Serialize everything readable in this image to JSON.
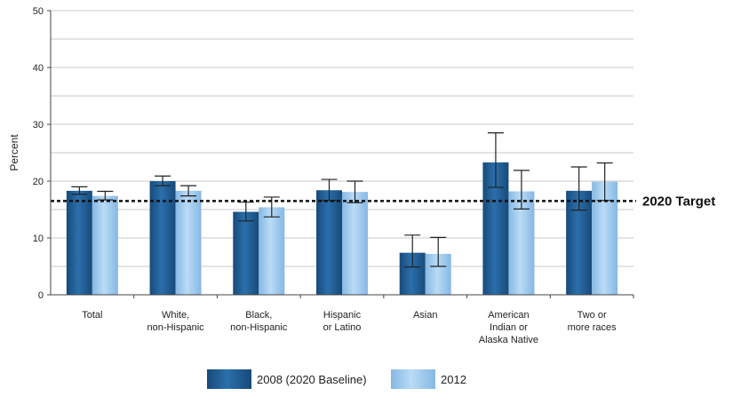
{
  "chart_data": {
    "type": "bar",
    "ylabel": "Percent",
    "ylim": [
      0,
      50
    ],
    "yticks": [
      0,
      10,
      20,
      30,
      40,
      50
    ],
    "grid": true,
    "categories": [
      [
        "Total"
      ],
      [
        "White,",
        "non-Hispanic"
      ],
      [
        "Black,",
        "non-Hispanic"
      ],
      [
        "Hispanic",
        "or Latino"
      ],
      [
        "Asian"
      ],
      [
        "American",
        "Indian or",
        "Alaska Native"
      ],
      [
        "Two or",
        "more races"
      ]
    ],
    "series": [
      {
        "name": "2008 (2020 Baseline)",
        "color": "#1f5d96",
        "values": [
          18.3,
          20.0,
          14.6,
          18.4,
          7.4,
          23.3,
          18.3
        ],
        "error_low": [
          17.7,
          19.2,
          13.0,
          16.6,
          4.9,
          18.9,
          14.9
        ],
        "error_high": [
          19.0,
          20.9,
          16.3,
          20.3,
          10.5,
          28.5,
          22.5
        ]
      },
      {
        "name": "2012",
        "color": "#9ecbf0",
        "values": [
          17.4,
          18.3,
          15.4,
          18.1,
          7.2,
          18.2,
          19.9
        ],
        "error_low": [
          16.7,
          17.4,
          13.7,
          16.2,
          5.0,
          15.1,
          16.6
        ],
        "error_high": [
          18.2,
          19.2,
          17.2,
          20.0,
          10.1,
          21.9,
          23.2
        ]
      }
    ],
    "target": {
      "value": 16.5,
      "label": "2020 Target"
    },
    "legend": {
      "placement": "bottom-center"
    }
  }
}
